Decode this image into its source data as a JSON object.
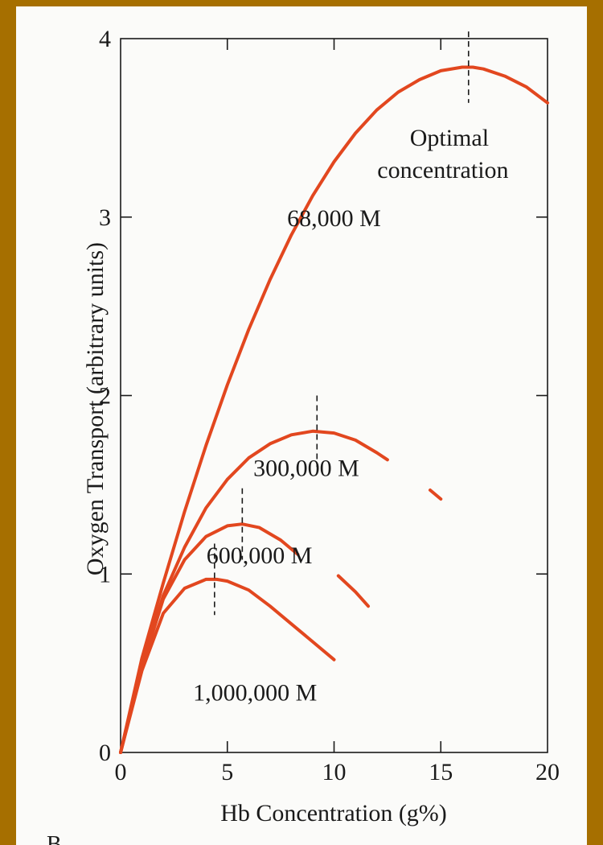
{
  "colors": {
    "frame": "#a66f00",
    "paper": "#fbfbf9",
    "curve": "#e2471f",
    "ink": "#1a1a1a"
  },
  "panel_label": "B",
  "chart_data": {
    "type": "line",
    "title": "",
    "xlabel": "Hb Concentration (g%)",
    "ylabel": "Oxygen Transport (arbitrary units)",
    "xlim": [
      0,
      20
    ],
    "ylim": [
      0,
      4
    ],
    "xticks": [
      0,
      5,
      10,
      15,
      20
    ],
    "yticks": [
      0,
      1,
      2,
      3,
      4
    ],
    "grid": false,
    "series": [
      {
        "name": "68,000 M",
        "x": [
          0,
          1,
          2,
          3,
          4,
          5,
          6,
          7,
          8,
          9,
          10,
          11,
          12,
          13,
          14,
          15,
          16,
          16.5,
          17,
          18,
          19,
          20
        ],
        "y": [
          0,
          0.53,
          0.95,
          1.35,
          1.72,
          2.06,
          2.37,
          2.65,
          2.9,
          3.12,
          3.31,
          3.47,
          3.6,
          3.7,
          3.77,
          3.82,
          3.84,
          3.84,
          3.83,
          3.79,
          3.73,
          3.64
        ],
        "optimum": 16.3,
        "label_at": [
          10,
          2.95
        ]
      },
      {
        "name": "300,000 M",
        "x": [
          0,
          1,
          2,
          3,
          4,
          5,
          6,
          7,
          8,
          9,
          10,
          11,
          12,
          12.5,
          null,
          14.5,
          15
        ],
        "y": [
          0,
          0.5,
          0.88,
          1.15,
          1.37,
          1.53,
          1.65,
          1.73,
          1.78,
          1.8,
          1.79,
          1.75,
          1.68,
          1.64,
          null,
          1.47,
          1.42
        ],
        "optimum": 9.2,
        "label_at": [
          8.7,
          1.55
        ]
      },
      {
        "name": "600,000 M",
        "x": [
          0,
          1,
          2,
          3,
          4,
          5,
          5.7,
          6.5,
          7.5,
          8.3,
          null,
          10.2,
          11,
          11.6
        ],
        "y": [
          0,
          0.48,
          0.86,
          1.08,
          1.21,
          1.27,
          1.28,
          1.26,
          1.19,
          1.11,
          null,
          0.99,
          0.9,
          0.82
        ],
        "optimum": 5.7,
        "label_at": [
          6.5,
          1.06
        ]
      },
      {
        "name": "1,000,000 M",
        "x": [
          0,
          1,
          2,
          3,
          4,
          4.5,
          5,
          6,
          7,
          8,
          9,
          10
        ],
        "y": [
          0,
          0.46,
          0.78,
          0.92,
          0.97,
          0.97,
          0.96,
          0.91,
          0.82,
          0.72,
          0.62,
          0.52
        ],
        "optimum": 4.4,
        "label_at": [
          6.3,
          0.29
        ]
      }
    ],
    "annotations": [
      {
        "text": "Optimal",
        "at": [
          15.4,
          3.4
        ]
      },
      {
        "text": "concentration",
        "at": [
          15.1,
          3.22
        ]
      }
    ]
  }
}
